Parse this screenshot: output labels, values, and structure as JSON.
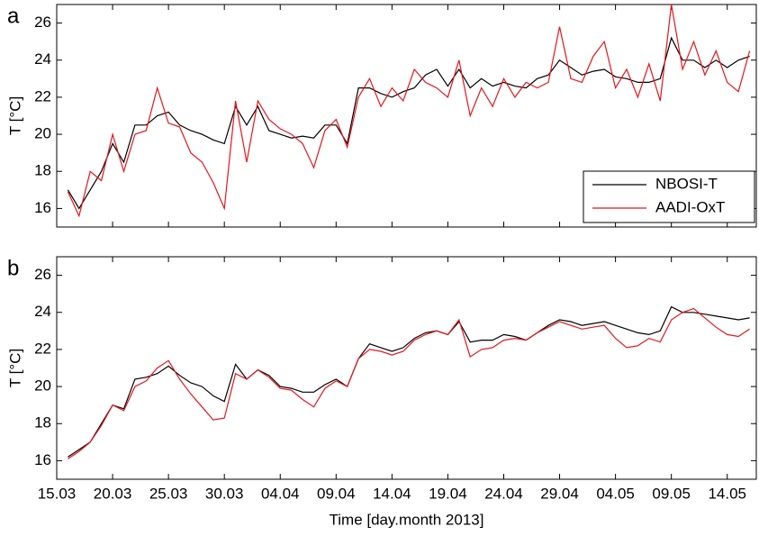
{
  "chart_data": [
    {
      "type": "line",
      "panel_label": "a",
      "ylabel": "T [°C]",
      "xlim": [
        74,
        136.6
      ],
      "xticks": [
        74,
        79,
        84,
        89,
        94,
        99,
        104,
        109,
        114,
        119,
        124,
        129,
        134
      ],
      "ylim": [
        15,
        27
      ],
      "yticks": [
        16,
        18,
        20,
        22,
        24,
        26
      ],
      "legend": "lower right",
      "x": [
        75,
        76,
        77,
        78,
        79,
        80,
        81,
        82,
        83,
        84,
        85,
        86,
        87,
        88,
        89,
        90,
        91,
        92,
        93,
        94,
        95,
        96,
        97,
        98,
        99,
        100,
        101,
        102,
        103,
        104,
        105,
        106,
        107,
        108,
        109,
        110,
        111,
        112,
        113,
        114,
        115,
        116,
        117,
        118,
        119,
        120,
        121,
        122,
        123,
        124,
        125,
        126,
        127,
        128,
        129,
        130,
        131,
        132,
        133,
        134,
        135,
        136
      ],
      "series": [
        {
          "name": "NBOSI-T",
          "color": "#000000",
          "values": [
            17.0,
            16.0,
            17.0,
            18.0,
            19.5,
            18.5,
            20.5,
            20.5,
            21.0,
            21.2,
            20.5,
            20.2,
            20.0,
            19.7,
            19.5,
            21.5,
            20.5,
            21.5,
            20.2,
            20.0,
            19.8,
            19.9,
            19.8,
            20.5,
            20.5,
            19.5,
            22.5,
            22.5,
            22.2,
            22.0,
            22.3,
            22.5,
            23.2,
            23.5,
            22.6,
            23.5,
            22.5,
            23.0,
            22.6,
            22.8,
            22.6,
            22.5,
            23.0,
            23.2,
            24.0,
            23.6,
            23.2,
            23.4,
            23.5,
            23.1,
            23.0,
            22.8,
            22.8,
            23.0,
            25.2,
            24.0,
            24.0,
            23.6,
            24.0,
            23.6,
            24.0,
            24.2
          ]
        },
        {
          "name": "AADI-OxT",
          "color": "#e8141b",
          "values": [
            16.9,
            15.6,
            18.0,
            17.5,
            20.0,
            18.0,
            20.0,
            20.2,
            22.5,
            20.6,
            20.4,
            19.0,
            18.5,
            17.4,
            16.0,
            21.8,
            18.5,
            21.8,
            20.8,
            20.3,
            20.0,
            19.5,
            18.2,
            20.2,
            20.8,
            19.3,
            22.0,
            23.0,
            21.5,
            22.5,
            21.8,
            23.5,
            22.8,
            22.5,
            22.0,
            24.0,
            21.0,
            22.5,
            21.5,
            23.0,
            22.0,
            22.8,
            22.5,
            22.8,
            25.8,
            23.0,
            22.8,
            24.2,
            25.0,
            22.5,
            23.5,
            22.0,
            23.8,
            21.8,
            27.0,
            23.5,
            25.0,
            23.2,
            24.5,
            22.8,
            22.3,
            24.5
          ]
        }
      ]
    },
    {
      "type": "line",
      "panel_label": "b",
      "ylabel": "T [°C]",
      "xlabel": "Time [day.month 2013]",
      "xlim": [
        74,
        136.6
      ],
      "xticks": [
        {
          "value": 74,
          "label": "15.03"
        },
        {
          "value": 79,
          "label": "20.03"
        },
        {
          "value": 84,
          "label": "25.03"
        },
        {
          "value": 89,
          "label": "30.03"
        },
        {
          "value": 94,
          "label": "04.04"
        },
        {
          "value": 99,
          "label": "09.04"
        },
        {
          "value": 104,
          "label": "14.04"
        },
        {
          "value": 109,
          "label": "19.04"
        },
        {
          "value": 114,
          "label": "24.04"
        },
        {
          "value": 119,
          "label": "29.04"
        },
        {
          "value": 124,
          "label": "04.05"
        },
        {
          "value": 129,
          "label": "09.05"
        },
        {
          "value": 134,
          "label": "14.05"
        }
      ],
      "ylim": [
        15,
        27
      ],
      "yticks": [
        16,
        18,
        20,
        22,
        24,
        26
      ],
      "x": [
        75,
        76,
        77,
        78,
        79,
        80,
        81,
        82,
        83,
        84,
        85,
        86,
        87,
        88,
        89,
        90,
        91,
        92,
        93,
        94,
        95,
        96,
        97,
        98,
        99,
        100,
        101,
        102,
        103,
        104,
        105,
        106,
        107,
        108,
        109,
        110,
        111,
        112,
        113,
        114,
        115,
        116,
        117,
        118,
        119,
        120,
        121,
        122,
        123,
        124,
        125,
        126,
        127,
        128,
        129,
        130,
        131,
        132,
        133,
        134,
        135,
        136
      ],
      "series": [
        {
          "color": "#000000",
          "values": [
            16.2,
            16.6,
            17.0,
            18.0,
            19.0,
            18.8,
            20.4,
            20.5,
            20.7,
            21.1,
            20.6,
            20.2,
            20.0,
            19.5,
            19.2,
            21.2,
            20.4,
            20.9,
            20.6,
            20.0,
            19.9,
            19.7,
            19.7,
            20.1,
            20.4,
            20.0,
            21.5,
            22.3,
            22.1,
            21.9,
            22.1,
            22.6,
            22.9,
            23.0,
            22.8,
            23.5,
            22.4,
            22.5,
            22.5,
            22.8,
            22.7,
            22.5,
            22.9,
            23.3,
            23.6,
            23.5,
            23.3,
            23.4,
            23.5,
            23.3,
            23.1,
            22.9,
            22.8,
            23.0,
            24.3,
            24.0,
            24.0,
            23.9,
            23.8,
            23.7,
            23.6,
            23.7
          ]
        },
        {
          "color": "#e8141b",
          "values": [
            16.1,
            16.5,
            17.0,
            17.9,
            19.0,
            18.7,
            20.0,
            20.3,
            21.0,
            21.4,
            20.4,
            19.6,
            18.9,
            18.2,
            18.3,
            20.7,
            20.4,
            20.9,
            20.5,
            19.9,
            19.8,
            19.3,
            18.9,
            19.9,
            20.3,
            20.0,
            21.5,
            22.0,
            21.9,
            21.7,
            21.9,
            22.5,
            22.8,
            23.0,
            22.8,
            23.6,
            21.6,
            22.0,
            22.1,
            22.5,
            22.6,
            22.5,
            22.9,
            23.2,
            23.5,
            23.3,
            23.1,
            23.2,
            23.3,
            22.6,
            22.1,
            22.2,
            22.6,
            22.4,
            23.6,
            24.0,
            24.2,
            23.7,
            23.2,
            22.8,
            22.7,
            23.1
          ]
        }
      ]
    }
  ]
}
